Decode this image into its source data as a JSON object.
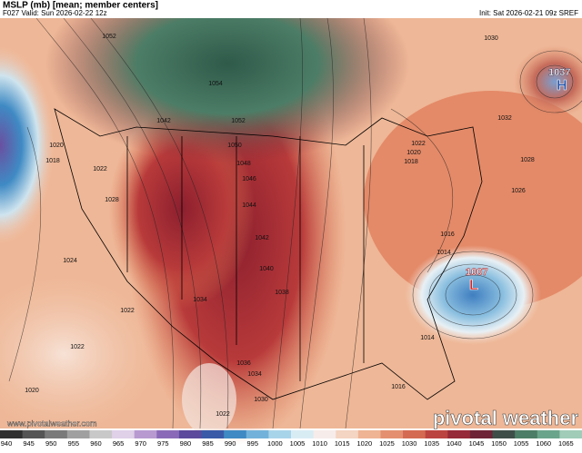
{
  "header": {
    "title": "MSLP (mb) [mean; member centers]",
    "valid": "F027 Valid: Sun 2026-02-22 12z",
    "init": "Init: Sat 2026-02-21 09z SREF"
  },
  "map": {
    "high": {
      "value": "1037",
      "symbol": "H"
    },
    "low": {
      "value": "1007",
      "symbol": "L"
    },
    "isobar_labels": [
      "1052",
      "1054",
      "1042",
      "1052",
      "1050",
      "1048",
      "1046",
      "1044",
      "1042",
      "1040",
      "1038",
      "1020",
      "1018",
      "1022",
      "1028",
      "1024",
      "1022",
      "1022",
      "1020",
      "1036",
      "1034",
      "1030",
      "1022",
      "1022",
      "1020",
      "1018",
      "1016",
      "1014",
      "1014",
      "1016",
      "1026",
      "1028",
      "1030",
      "1032",
      "1034"
    ]
  },
  "colorbar": {
    "ticks": [
      940,
      945,
      950,
      955,
      960,
      965,
      970,
      975,
      980,
      985,
      990,
      995,
      1000,
      1005,
      1010,
      1015,
      1020,
      1025,
      1030,
      1035,
      1040,
      1045,
      1050,
      1055,
      1060,
      1065
    ]
  },
  "footer": {
    "url": "www.pivotalweather.com",
    "brand": "pivotal weather"
  }
}
